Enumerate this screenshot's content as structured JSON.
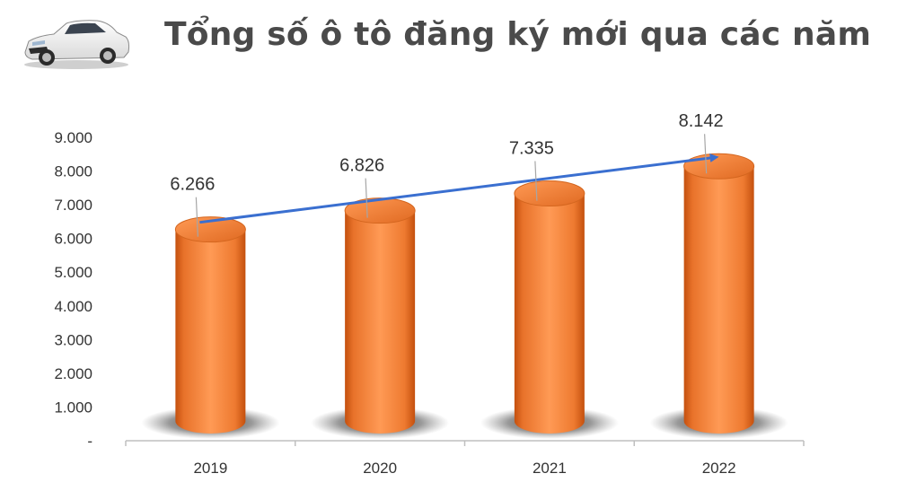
{
  "title": "Tổng số ô tô đăng ký mới qua các năm",
  "colors": {
    "bar_light": "#ff9a55",
    "bar_mid": "#f07a2c",
    "bar_dark": "#c4500e",
    "arrow": "#3a6fd0",
    "axis": "#bfbfbf",
    "text": "#333333"
  },
  "chart_data": {
    "type": "bar",
    "title": "Tổng số ô tô đăng ký mới qua các năm",
    "categories": [
      "2019",
      "2020",
      "2021",
      "2022"
    ],
    "values": [
      6266,
      6826,
      7335,
      8142
    ],
    "value_labels": [
      "6.266",
      "6.826",
      "7.335",
      "8.142"
    ],
    "y_ticks": [
      0,
      1000,
      2000,
      3000,
      4000,
      5000,
      6000,
      7000,
      8000,
      9000
    ],
    "y_tick_labels": [
      "-",
      "1.000",
      "2.000",
      "3.000",
      "4.000",
      "5.000",
      "6.000",
      "7.000",
      "8.000",
      "9.000"
    ],
    "ylim": [
      0,
      9000
    ],
    "bar_style": "3d-cylinder",
    "trend_arrow": true,
    "grid": false,
    "legend": "none"
  }
}
